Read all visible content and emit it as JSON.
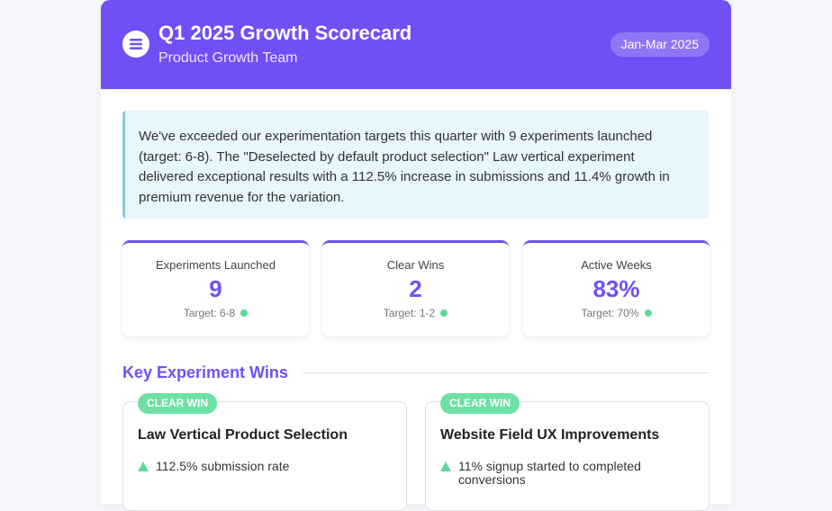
{
  "header": {
    "title": "Q1 2025 Growth Scorecard",
    "subtitle": "Product Growth Team",
    "period": "Jan-Mar 2025"
  },
  "summary": "We've exceeded our experimentation targets this quarter with 9 experiments launched (target: 6-8). The \"Deselected by default product selection\" Law vertical experiment delivered exceptional results with a 112.5% increase in submissions and 11.4% growth in premium revenue for the variation.",
  "stats": [
    {
      "label": "Experiments Launched",
      "value": "9",
      "target": "Target: 6-8"
    },
    {
      "label": "Clear Wins",
      "value": "2",
      "target": "Target: 1-2"
    },
    {
      "label": "Active Weeks",
      "value": "83%",
      "target": "Target: 70%"
    }
  ],
  "wins": {
    "heading": "Key Experiment Wins",
    "items": [
      {
        "badge": "CLEAR WIN",
        "title": "Law Vertical Product Selection",
        "points": [
          "112.5% submission rate"
        ]
      },
      {
        "badge": "CLEAR WIN",
        "title": "Website Field UX Improvements",
        "points": [
          "11% signup started to completed conversions"
        ]
      }
    ]
  }
}
